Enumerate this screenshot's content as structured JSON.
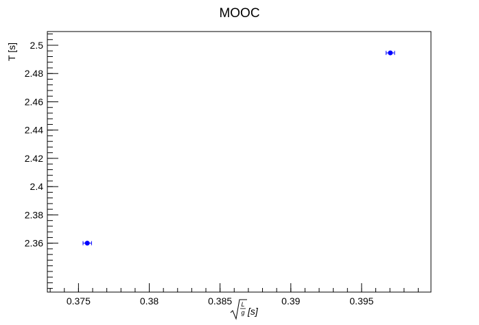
{
  "chart_data": {
    "type": "scatter",
    "title": "MOOC",
    "ylabel": "T [s]",
    "xlabel_parts": {
      "sqrt_num": "L",
      "sqrt_den": "g",
      "suffix": "[s]"
    },
    "xlim": [
      0.3728,
      0.3999
    ],
    "ylim": [
      2.3254,
      2.5097
    ],
    "x_ticks": [
      0.375,
      0.38,
      0.385,
      0.39,
      0.395
    ],
    "x_tick_labels": [
      "0.375",
      "0.38",
      "0.385",
      "0.39",
      "0.395"
    ],
    "y_ticks": [
      2.36,
      2.38,
      2.4,
      2.42,
      2.44,
      2.46,
      2.48,
      2.5
    ],
    "y_tick_labels": [
      "2.36",
      "2.38",
      "2.4",
      "2.42",
      "2.44",
      "2.46",
      "2.48",
      "2.5"
    ],
    "grid": false,
    "series": [
      {
        "color": "#0000ff",
        "points": [
          {
            "x": 0.37562,
            "y": 2.36,
            "xerr": 0.0003,
            "yerr": 0.0
          },
          {
            "x": 0.39703,
            "y": 2.4946,
            "xerr": 0.0003,
            "yerr": 0.0
          }
        ]
      }
    ]
  }
}
